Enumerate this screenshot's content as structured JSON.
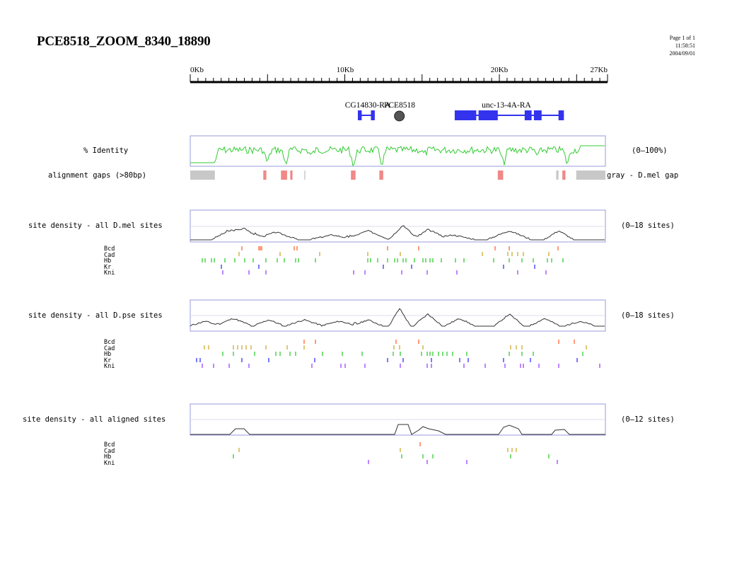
{
  "title": "PCE8518_ZOOM_8340_18890",
  "page": {
    "line1": "Page 1 of 1",
    "line2": "11:58:51",
    "line3": "2004/09/01"
  },
  "axis": {
    "labels": [
      "0Kb",
      "10Kb",
      "20Kb",
      "27Kb"
    ],
    "max_kb": 27
  },
  "genes": [
    {
      "name": "CG14830-RA",
      "start_kb": 10.9,
      "end_kb": 12.0,
      "exons": [
        [
          10.9,
          11.15
        ],
        [
          11.75,
          12.0
        ]
      ]
    },
    {
      "name": "unc-13-4A-RA",
      "start_kb": 17.2,
      "end_kb": 24.3,
      "exons": [
        [
          17.2,
          18.6
        ],
        [
          18.75,
          20.0
        ],
        [
          21.75,
          22.2
        ],
        [
          22.35,
          22.85
        ],
        [
          23.95,
          24.3
        ]
      ]
    }
  ],
  "element": {
    "name": "PCE8518",
    "pos_kb": 13.6
  },
  "tracks": {
    "identity": {
      "label": "% Identity",
      "range": "(0–100%)",
      "color": "#33cc33"
    },
    "gaps": {
      "label": "alignment gaps (>80bp)",
      "legend": "gray - D.mel gap",
      "gray": [
        [
          0,
          1.6
        ],
        [
          23.8,
          23.95
        ],
        [
          25.1,
          27
        ]
      ],
      "red": [
        [
          4.75,
          4.95
        ],
        [
          5.9,
          6.3
        ],
        [
          6.5,
          6.65
        ],
        [
          10.45,
          10.75
        ],
        [
          12.3,
          12.55
        ],
        [
          20.0,
          20.35
        ],
        [
          24.2,
          24.4
        ]
      ],
      "lightgray": [
        [
          7.4,
          7.5
        ]
      ]
    },
    "dmel": {
      "label": "site density - all D.mel sites",
      "range": "(0–18 sites)"
    },
    "dpse": {
      "label": "site density - all D.pse sites",
      "range": "(0–18 sites)"
    },
    "aligned": {
      "label": "site density - all aligned sites",
      "range": "(0–12 sites)"
    }
  },
  "tf_labels": {
    "bcd": "Bcd",
    "cad": "Cad",
    "hb": "Hb",
    "kr": "Kr",
    "kni": "Kni"
  },
  "colors": {
    "bcd": "#ff6633",
    "cad": "#ccaa33",
    "hb": "#33cc33",
    "kr": "#3333ff",
    "kni": "#9944ff",
    "gene": "#3333ee"
  }
}
